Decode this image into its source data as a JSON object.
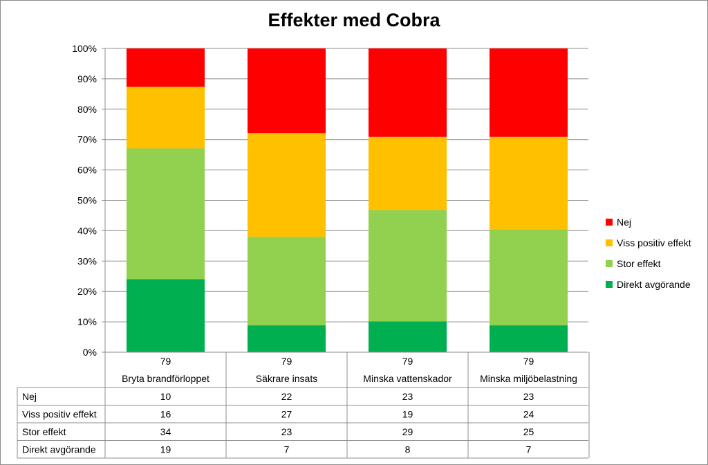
{
  "chart_data": {
    "type": "bar",
    "stacked": true,
    "percent": true,
    "title": "Effekter  med Cobra",
    "y_ticks": [
      "0%",
      "10%",
      "20%",
      "30%",
      "40%",
      "50%",
      "60%",
      "70%",
      "80%",
      "90%",
      "100%"
    ],
    "ylim": [
      0,
      100
    ],
    "grid": true,
    "legend_position": "right",
    "totals": [
      "79",
      "79",
      "79",
      "79"
    ],
    "categories": [
      "Bryta brandförloppet",
      "Säkrare insats",
      "Minska vattenskador",
      "Minska miljöbelastning"
    ],
    "series": [
      {
        "name": "Direkt avgörande",
        "values": [
          19,
          7,
          8,
          7
        ],
        "color": "#00b050"
      },
      {
        "name": "Stor effekt",
        "values": [
          34,
          23,
          29,
          25
        ],
        "color": "#92d050"
      },
      {
        "name": "Viss positiv effekt",
        "values": [
          16,
          27,
          19,
          24
        ],
        "color": "#ffc000"
      },
      {
        "name": "Nej",
        "values": [
          10,
          22,
          23,
          23
        ],
        "color": "#ff0000"
      }
    ],
    "table_rows": [
      {
        "label": "Nej",
        "values": [
          "10",
          "22",
          "23",
          "23"
        ]
      },
      {
        "label": "Viss positiv effekt",
        "values": [
          "16",
          "27",
          "19",
          "24"
        ]
      },
      {
        "label": "Stor effekt",
        "values": [
          "34",
          "23",
          "29",
          "25"
        ]
      },
      {
        "label": "Direkt avgörande",
        "values": [
          "19",
          "7",
          "8",
          "7"
        ]
      }
    ]
  },
  "legend": [
    {
      "label": "Nej",
      "color": "#ff0000"
    },
    {
      "label": "Viss positiv effekt",
      "color": "#ffc000"
    },
    {
      "label": "Stor effekt",
      "color": "#92d050"
    },
    {
      "label": "Direkt avgörande",
      "color": "#00b050"
    }
  ]
}
